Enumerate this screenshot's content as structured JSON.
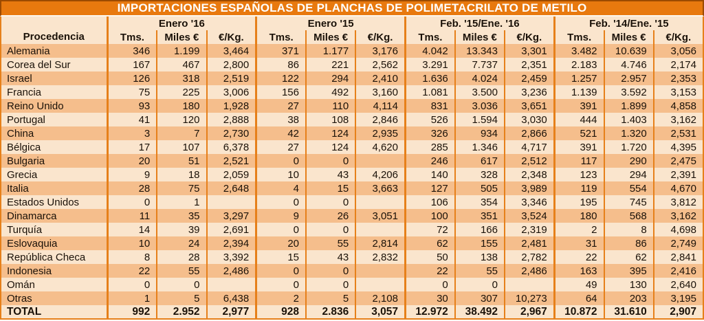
{
  "title": "IMPORTACIONES ESPAÑOLAS DE PLANCHAS DE POLIMETACRILATO DE METILO",
  "colors": {
    "title_bg": "#E8790E",
    "title_border": "#9C4A00",
    "stripe_dark": "#F5BE8C",
    "stripe_light": "#FAE5CD",
    "line": "#E6801A",
    "text": "#1a1108"
  },
  "chart_data": {
    "type": "table",
    "title": "IMPORTACIONES ESPAÑOLAS DE PLANCHAS DE POLIMETACRILATO DE METILO",
    "row_header": "Procedencia",
    "groups": [
      "Enero '16",
      "Enero '15",
      "Feb. '15/Ene. '16",
      "Feb. '14/Ene. '15"
    ],
    "sub_headers": [
      "Tms.",
      "Miles €",
      "€/Kg."
    ],
    "rows": [
      {
        "name": "Alemania",
        "values": [
          "346",
          "1.199",
          "3,464",
          "371",
          "1.177",
          "3,176",
          "4.042",
          "13.343",
          "3,301",
          "3.482",
          "10.639",
          "3,056"
        ]
      },
      {
        "name": "Corea del Sur",
        "values": [
          "167",
          "467",
          "2,800",
          "86",
          "221",
          "2,562",
          "3.291",
          "7.737",
          "2,351",
          "2.183",
          "4.746",
          "2,174"
        ]
      },
      {
        "name": "Israel",
        "values": [
          "126",
          "318",
          "2,519",
          "122",
          "294",
          "2,410",
          "1.636",
          "4.024",
          "2,459",
          "1.257",
          "2.957",
          "2,353"
        ]
      },
      {
        "name": "Francia",
        "values": [
          "75",
          "225",
          "3,006",
          "156",
          "492",
          "3,160",
          "1.081",
          "3.500",
          "3,236",
          "1.139",
          "3.592",
          "3,153"
        ]
      },
      {
        "name": "Reino Unido",
        "values": [
          "93",
          "180",
          "1,928",
          "27",
          "110",
          "4,114",
          "831",
          "3.036",
          "3,651",
          "391",
          "1.899",
          "4,858"
        ]
      },
      {
        "name": "Portugal",
        "values": [
          "41",
          "120",
          "2,888",
          "38",
          "108",
          "2,846",
          "526",
          "1.594",
          "3,030",
          "444",
          "1.403",
          "3,162"
        ]
      },
      {
        "name": "China",
        "values": [
          "3",
          "7",
          "2,730",
          "42",
          "124",
          "2,935",
          "326",
          "934",
          "2,866",
          "521",
          "1.320",
          "2,531"
        ]
      },
      {
        "name": "Bélgica",
        "values": [
          "17",
          "107",
          "6,378",
          "27",
          "124",
          "4,620",
          "285",
          "1.346",
          "4,717",
          "391",
          "1.720",
          "4,395"
        ]
      },
      {
        "name": "Bulgaria",
        "values": [
          "20",
          "51",
          "2,521",
          "0",
          "0",
          "",
          "246",
          "617",
          "2,512",
          "117",
          "290",
          "2,475"
        ]
      },
      {
        "name": "Grecia",
        "values": [
          "9",
          "18",
          "2,059",
          "10",
          "43",
          "4,206",
          "140",
          "328",
          "2,348",
          "123",
          "294",
          "2,391"
        ]
      },
      {
        "name": "Italia",
        "values": [
          "28",
          "75",
          "2,648",
          "4",
          "15",
          "3,663",
          "127",
          "505",
          "3,989",
          "119",
          "554",
          "4,670"
        ]
      },
      {
        "name": "Estados Unidos",
        "values": [
          "0",
          "1",
          "",
          "0",
          "0",
          "",
          "106",
          "354",
          "3,346",
          "195",
          "745",
          "3,812"
        ]
      },
      {
        "name": "Dinamarca",
        "values": [
          "11",
          "35",
          "3,297",
          "9",
          "26",
          "3,051",
          "100",
          "351",
          "3,524",
          "180",
          "568",
          "3,162"
        ]
      },
      {
        "name": "Turquía",
        "values": [
          "14",
          "39",
          "2,691",
          "0",
          "0",
          "",
          "72",
          "166",
          "2,319",
          "2",
          "8",
          "4,698"
        ]
      },
      {
        "name": "Eslovaquia",
        "values": [
          "10",
          "24",
          "2,394",
          "20",
          "55",
          "2,814",
          "62",
          "155",
          "2,481",
          "31",
          "86",
          "2,749"
        ]
      },
      {
        "name": "República Checa",
        "values": [
          "8",
          "28",
          "3,392",
          "15",
          "43",
          "2,832",
          "50",
          "138",
          "2,782",
          "22",
          "62",
          "2,841"
        ]
      },
      {
        "name": "Indonesia",
        "values": [
          "22",
          "55",
          "2,486",
          "0",
          "0",
          "",
          "22",
          "55",
          "2,486",
          "163",
          "395",
          "2,416"
        ]
      },
      {
        "name": "Omán",
        "values": [
          "0",
          "0",
          "",
          "0",
          "0",
          "",
          "0",
          "0",
          "",
          "49",
          "130",
          "2,640"
        ]
      },
      {
        "name": "Otras",
        "values": [
          "1",
          "5",
          "6,438",
          "2",
          "5",
          "2,108",
          "30",
          "307",
          "10,273",
          "64",
          "203",
          "3,195"
        ]
      }
    ],
    "total": {
      "name": "TOTAL",
      "values": [
        "992",
        "2.952",
        "2,977",
        "928",
        "2.836",
        "3,057",
        "12.972",
        "38.492",
        "2,967",
        "10.872",
        "31.610",
        "2,907"
      ]
    }
  }
}
